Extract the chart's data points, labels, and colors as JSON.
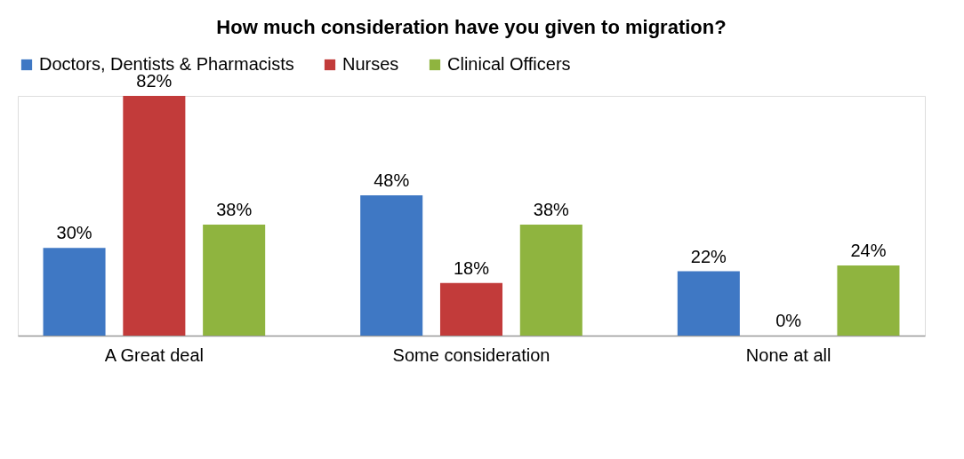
{
  "chart_data": {
    "type": "bar",
    "title": "How much consideration have you given to migration?",
    "categories": [
      "A Great deal",
      "Some consideration",
      "None at all"
    ],
    "series": [
      {
        "name": "Doctors, Dentists & Pharmacists",
        "color": "#3f78c4",
        "values": [
          30,
          48,
          22
        ],
        "value_labels": [
          "30%",
          "48%",
          "22%"
        ]
      },
      {
        "name": "Nurses",
        "color": "#c23b3a",
        "values": [
          82,
          18,
          0
        ],
        "value_labels": [
          "82%",
          "18%",
          "0%"
        ]
      },
      {
        "name": "Clinical Officers",
        "color": "#8fb43f",
        "values": [
          38,
          38,
          24
        ],
        "value_labels": [
          "38%",
          "38%",
          "24%"
        ]
      }
    ],
    "legend": "top",
    "grid": false
  }
}
